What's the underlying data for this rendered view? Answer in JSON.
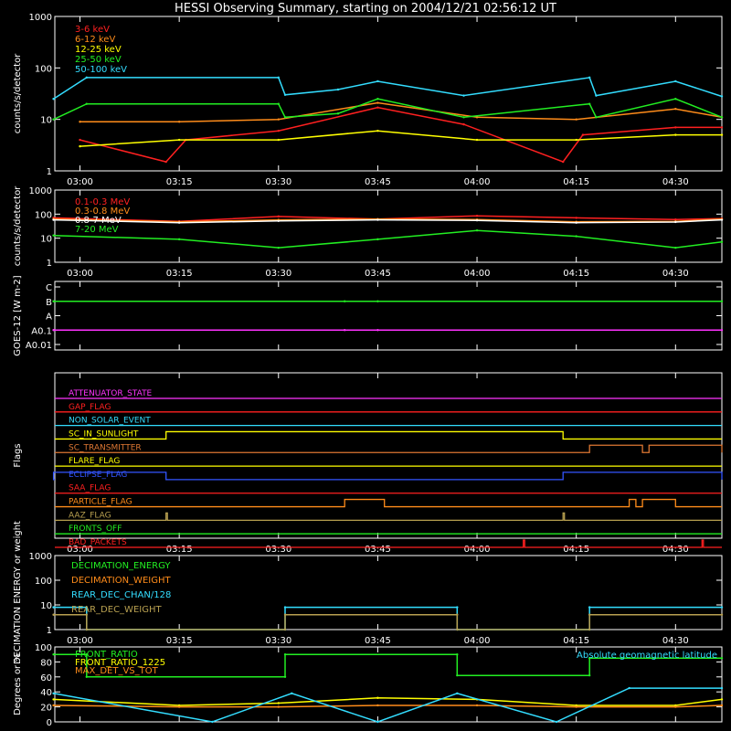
{
  "title": "HESSI Observing Summary, starting on 2004/12/21 02:56:12 UT",
  "colors": {
    "red": "#ff2020",
    "orange": "#ff8c1a",
    "yellow": "#ffff00",
    "green": "#22ee22",
    "cyan": "#33ddff",
    "magenta": "#ff33ff",
    "blue": "#3355ff",
    "olive": "#b8a050",
    "brown": "#dd7733",
    "white": "#ffffff"
  },
  "time_axis": {
    "start": "02:56:12",
    "end": "04:37",
    "ticks": [
      "03:00",
      "03:15",
      "03:30",
      "03:45",
      "04:00",
      "04:15",
      "04:30"
    ]
  },
  "chart_data": [
    {
      "type": "line",
      "ylabel": "counts/s/detector",
      "yscale": "log",
      "ylim": [
        1,
        1000
      ],
      "yticks": [
        "1",
        "10",
        "100",
        "1000"
      ],
      "legend": [
        "3-6 keV",
        "6-12 keV",
        "12-25 keV",
        "25-50 keV",
        "50-100 keV"
      ],
      "series": [
        {
          "name": "3-6 keV",
          "color": "red",
          "x": [
            "03:00",
            "03:13",
            "03:16",
            "03:30",
            "03:45",
            "03:58",
            "04:13",
            "04:16",
            "04:30",
            "04:37"
          ],
          "y": [
            4,
            1.5,
            4,
            6,
            17,
            8,
            1.5,
            5,
            7,
            7
          ]
        },
        {
          "name": "6-12 keV",
          "color": "orange",
          "x": [
            "03:00",
            "03:15",
            "03:30",
            "03:45",
            "04:00",
            "04:15",
            "04:30",
            "04:37"
          ],
          "y": [
            9,
            9,
            10,
            21,
            11,
            10,
            16,
            11
          ]
        },
        {
          "name": "12-25 keV",
          "color": "yellow",
          "x": [
            "03:00",
            "03:15",
            "03:30",
            "03:45",
            "04:00",
            "04:15",
            "04:30",
            "04:37"
          ],
          "y": [
            3,
            4,
            4,
            6,
            4,
            4,
            5,
            5
          ]
        },
        {
          "name": "25-50 keV",
          "color": "green",
          "x": [
            "02:56",
            "03:01",
            "03:30",
            "03:31",
            "03:39",
            "03:45",
            "03:58",
            "04:17",
            "04:18",
            "04:30",
            "04:37"
          ],
          "y": [
            10,
            20,
            20,
            11,
            13,
            25,
            11,
            20,
            11,
            25,
            11
          ]
        },
        {
          "name": "50-100 keV",
          "color": "cyan",
          "x": [
            "02:56",
            "03:01",
            "03:30",
            "03:31",
            "03:39",
            "03:45",
            "03:58",
            "04:17",
            "04:18",
            "04:30",
            "04:37"
          ],
          "y": [
            25,
            65,
            65,
            30,
            38,
            55,
            29,
            65,
            29,
            55,
            28
          ]
        }
      ]
    },
    {
      "type": "line",
      "ylabel": "counts/s/detector",
      "yscale": "log",
      "ylim": [
        1,
        1000
      ],
      "yticks": [
        "1",
        "10",
        "100",
        "1000"
      ],
      "legend": [
        "0.1-0.3 MeV",
        "0.3-0.8 MeV",
        "0.8-7 MeV",
        "7-20 MeV"
      ],
      "series": [
        {
          "name": "0.1-0.3 MeV",
          "color": "red",
          "x": [
            "02:56",
            "03:15",
            "03:30",
            "03:45",
            "04:00",
            "04:15",
            "04:30",
            "04:37"
          ],
          "y": [
            70,
            50,
            80,
            62,
            85,
            70,
            60,
            65
          ]
        },
        {
          "name": "0.3-0.8 MeV",
          "color": "orange",
          "x": [
            "02:56",
            "03:15",
            "03:30",
            "03:45",
            "04:00",
            "04:15",
            "04:30",
            "04:37"
          ],
          "y": [
            62,
            48,
            58,
            62,
            60,
            48,
            50,
            62
          ]
        },
        {
          "name": "0.8-7 MeV",
          "color": "white",
          "x": [
            "02:56",
            "03:15",
            "03:30",
            "03:45",
            "04:00",
            "04:15",
            "04:30",
            "04:37"
          ],
          "y": [
            58,
            44,
            52,
            58,
            55,
            44,
            47,
            58
          ]
        },
        {
          "name": "7-20 MeV",
          "color": "green",
          "x": [
            "02:56",
            "03:15",
            "03:30",
            "03:45",
            "04:00",
            "04:15",
            "04:30",
            "04:37"
          ],
          "y": [
            13,
            9,
            4,
            9,
            21,
            12,
            4,
            7
          ]
        }
      ]
    },
    {
      "type": "line",
      "ylabel": "GOES-12 [W m-2]",
      "yscale": "log",
      "yticks": [
        "A0.01",
        "A0.1",
        "A",
        "B",
        "C"
      ],
      "series": [
        {
          "name": "GOES long",
          "color": "green",
          "x": [
            "02:56",
            "03:40",
            "03:45",
            "04:37"
          ],
          "y": [
            "B",
            "B",
            "B",
            "B"
          ]
        },
        {
          "name": "GOES short",
          "color": "magenta",
          "x": [
            "02:56",
            "03:40",
            "03:45",
            "04:37"
          ],
          "y": [
            "A0.1",
            "A0.1",
            "A0.1",
            "A0.1"
          ]
        }
      ]
    },
    {
      "type": "line",
      "ylabel": "Flags",
      "flags": [
        {
          "name": "ATTENUATOR_STATE",
          "color": "magenta",
          "on": []
        },
        {
          "name": "GAP_FLAG",
          "color": "red",
          "on": []
        },
        {
          "name": "NON_SOLAR_EVENT",
          "color": "cyan",
          "on": []
        },
        {
          "name": "SC_IN_SUNLIGHT",
          "color": "yellow",
          "on": [
            [
              "03:13",
              "04:13"
            ]
          ]
        },
        {
          "name": "SC_TRANSMITTER",
          "color": "brown",
          "on": [
            [
              "04:17",
              "04:25"
            ],
            [
              "04:26",
              "04:37"
            ]
          ]
        },
        {
          "name": "FLARE_FLAG",
          "color": "yellow",
          "on": []
        },
        {
          "name": "ECLIPSE_FLAG",
          "color": "blue",
          "on": [
            [
              "02:56",
              "03:13"
            ],
            [
              "04:13",
              "04:37"
            ]
          ]
        },
        {
          "name": "SAA_FLAG",
          "color": "red",
          "on": []
        },
        {
          "name": "PARTICLE_FLAG",
          "color": "orange",
          "on": [
            [
              "03:40",
              "03:46"
            ],
            [
              "04:23",
              "04:24"
            ],
            [
              "04:25",
              "04:30"
            ]
          ]
        },
        {
          "name": "AAZ_FLAG",
          "color": "olive",
          "on": [
            [
              "03:13",
              "03:13"
            ],
            [
              "04:13",
              "04:13"
            ]
          ]
        },
        {
          "name": "FRONTS_OFF",
          "color": "green",
          "on": []
        },
        {
          "name": "BAD_PACKETS",
          "color": "red",
          "on": [
            [
              "04:07",
              "04:07"
            ],
            [
              "04:34",
              "04:34"
            ]
          ]
        }
      ]
    },
    {
      "type": "line",
      "ylabel": "DECIMATION ENERGY or weight",
      "yscale": "log",
      "ylim": [
        1,
        1000
      ],
      "yticks": [
        "1",
        "10",
        "100",
        "1000"
      ],
      "legend": [
        "DECIMATION_ENERGY",
        "DECIMATION_WEIGHT",
        "REAR_DEC_CHAN/128",
        "REAR_DEC_WEIGHT"
      ],
      "series": [
        {
          "name": "REAR_DEC_CHAN/128",
          "color": "cyan",
          "x": [
            "02:56",
            "03:01",
            "03:01",
            "03:31",
            "03:31",
            "03:57",
            "03:57",
            "04:17",
            "04:17",
            "04:37"
          ],
          "y": [
            8,
            8,
            1,
            1,
            8,
            8,
            1,
            1,
            8,
            8
          ]
        },
        {
          "name": "REAR_DEC_WEIGHT",
          "color": "olive",
          "x": [
            "02:56",
            "03:01",
            "03:01",
            "03:31",
            "03:31",
            "03:57",
            "03:57",
            "04:17",
            "04:17",
            "04:37"
          ],
          "y": [
            4,
            4,
            1,
            1,
            4,
            4,
            1,
            1,
            4,
            4
          ]
        }
      ]
    },
    {
      "type": "line",
      "ylabel": "Degrees or %",
      "ylim": [
        0,
        100
      ],
      "yticks": [
        "0",
        "20",
        "40",
        "60",
        "80",
        "100"
      ],
      "legend": [
        "FRONT_RATIO",
        "FRONT_RATIO_1225",
        "MAX_DET_VS_TOT",
        "Absolute geomagnetic latitude"
      ],
      "series": [
        {
          "name": "FRONT_RATIO",
          "color": "green",
          "x": [
            "02:56",
            "03:01",
            "03:01",
            "03:31",
            "03:31",
            "03:57",
            "03:57",
            "04:17",
            "04:17",
            "04:37"
          ],
          "y": [
            90,
            90,
            60,
            60,
            90,
            90,
            62,
            62,
            85,
            85
          ]
        },
        {
          "name": "FRONT_RATIO_1225",
          "color": "yellow",
          "x": [
            "02:56",
            "03:15",
            "03:30",
            "03:45",
            "04:00",
            "04:15",
            "04:30",
            "04:37"
          ],
          "y": [
            30,
            22,
            25,
            32,
            30,
            22,
            22,
            30
          ]
        },
        {
          "name": "MAX_DET_VS_TOT",
          "color": "orange",
          "x": [
            "02:56",
            "03:15",
            "03:30",
            "03:45",
            "04:00",
            "04:15",
            "04:30",
            "04:37"
          ],
          "y": [
            22,
            20,
            20,
            22,
            22,
            20,
            20,
            22
          ]
        },
        {
          "name": "Absolute geomagnetic latitude",
          "color": "cyan",
          "x": [
            "02:56",
            "03:20",
            "03:32",
            "03:45",
            "03:57",
            "04:12",
            "04:23",
            "04:37"
          ],
          "y": [
            38,
            0,
            38,
            0,
            38,
            0,
            45,
            45
          ]
        }
      ]
    }
  ]
}
